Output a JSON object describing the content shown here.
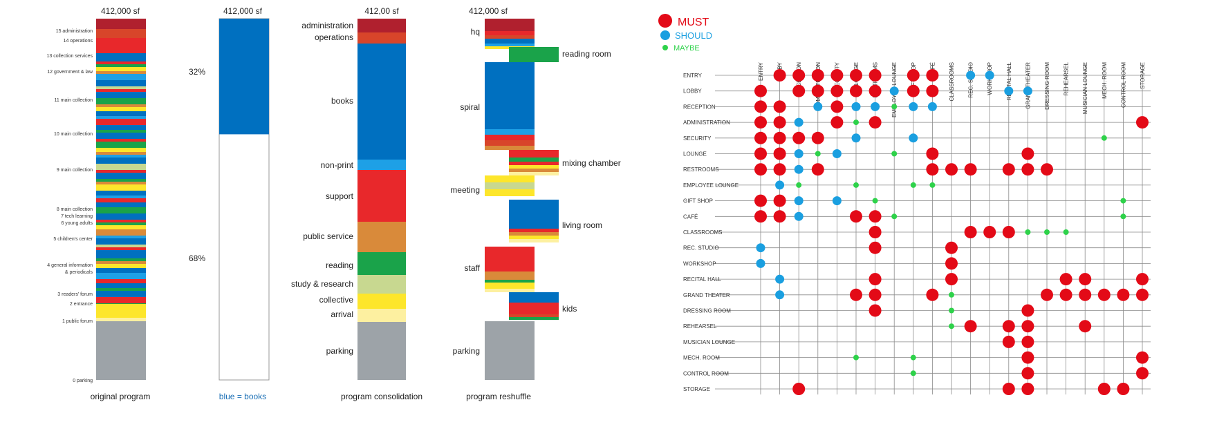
{
  "colors": {
    "darkred": "#b0202e",
    "red": "#e8282b",
    "orangered": "#d8452a",
    "blue": "#0070c0",
    "lightblue": "#1ea0e6",
    "orange": "#d98a3a",
    "green": "#1aa34a",
    "lightgreen": "#c8d890",
    "yellow": "#fde62b",
    "paleyellow": "#fdf0a0",
    "gray": "#9da3a8",
    "must": "#e30a17",
    "should": "#1a9fe0",
    "maybe": "#2ed24a"
  },
  "bars": {
    "original": {
      "total": "412,000 sf",
      "caption": "original program",
      "labels": [
        "15 administration",
        "14 operations",
        "13 collection services",
        "12 government & law",
        "11 main collection",
        "10 main collection",
        "9 main collection",
        "8 main collection",
        "7 tech learning",
        "6 young adults",
        "5 children's center",
        "4 general information",
        "& periodicals",
        "3 readers' forum",
        "2 entrance",
        "1 public forum",
        "0 parking"
      ]
    },
    "books": {
      "total": "412,000 sf",
      "caption": "blue = books",
      "pct_books": "32%",
      "pct_other": "68%",
      "books_fraction": 0.32
    },
    "consolidation": {
      "total": "412,00 sf",
      "caption": "program consolidation",
      "labels": [
        "administration",
        "operations",
        "books",
        "non-print",
        "support",
        "public service",
        "reading",
        "study & research",
        "collective",
        "arrival",
        "parking"
      ]
    },
    "reshuffle": {
      "total": "412,000 sf",
      "caption": "program reshuffle",
      "labels": [
        "hq",
        "reading room",
        "spiral",
        "mixing chamber",
        "meeting",
        "living room",
        "staff",
        "kids",
        "parking"
      ]
    }
  },
  "matrix": {
    "legend": {
      "must": "MUST",
      "should": "SHOULD",
      "maybe": "MAYBE"
    },
    "columns": [
      "ENTRY",
      "LOBBY",
      "RECEPTION",
      "ADMINISTRATION",
      "SECURITY",
      "LOUNGE",
      "RESTROOMS",
      "EMPLOYEE LOUNGE",
      "GIFT SHOP",
      "CAFÉ",
      "CLASSROOMS",
      "REC. STUDIO",
      "WORKSHOP",
      "RECITAL HALL",
      "GRAND THEATER",
      "DRESSING ROOM",
      "REHEARSEL",
      "MUSICIAN LOUNGE",
      "MECH. ROOM",
      "CONTROL ROOM",
      "STORAGE"
    ],
    "rows": [
      "ENTRY",
      "LOBBY",
      "RECEPTION",
      "ADMINISTRATION",
      "SECURITY",
      "LOUNGE",
      "RESTROOMS",
      "EMPLOYEE LOUNGE",
      "GIFT SHOP",
      "CAFÉ",
      "CLASSROOMS",
      "REC. STUDIO",
      "WORKSHOP",
      "RECITAL HALL",
      "GRAND THEATER",
      "DRESSING ROOM",
      "REHEARSEL",
      "MUSICIAN LOUNGE",
      "MECH. ROOM",
      "CONTROL ROOM",
      "STORAGE"
    ],
    "cells": [
      {
        "row": 0,
        "col": 1,
        "level": "must"
      },
      {
        "row": 0,
        "col": 2,
        "level": "must"
      },
      {
        "row": 0,
        "col": 3,
        "level": "must"
      },
      {
        "row": 0,
        "col": 4,
        "level": "must"
      },
      {
        "row": 0,
        "col": 5,
        "level": "must"
      },
      {
        "row": 0,
        "col": 6,
        "level": "must"
      },
      {
        "row": 0,
        "col": 8,
        "level": "must"
      },
      {
        "row": 0,
        "col": 9,
        "level": "must"
      },
      {
        "row": 0,
        "col": 11,
        "level": "should"
      },
      {
        "row": 0,
        "col": 12,
        "level": "should"
      },
      {
        "row": 1,
        "col": 0,
        "level": "must"
      },
      {
        "row": 1,
        "col": 2,
        "level": "must"
      },
      {
        "row": 1,
        "col": 3,
        "level": "must"
      },
      {
        "row": 1,
        "col": 4,
        "level": "must"
      },
      {
        "row": 1,
        "col": 5,
        "level": "must"
      },
      {
        "row": 1,
        "col": 6,
        "level": "must"
      },
      {
        "row": 1,
        "col": 7,
        "level": "should"
      },
      {
        "row": 1,
        "col": 8,
        "level": "must"
      },
      {
        "row": 1,
        "col": 9,
        "level": "must"
      },
      {
        "row": 1,
        "col": 13,
        "level": "should"
      },
      {
        "row": 1,
        "col": 14,
        "level": "should"
      },
      {
        "row": 2,
        "col": 0,
        "level": "must"
      },
      {
        "row": 2,
        "col": 1,
        "level": "must"
      },
      {
        "row": 2,
        "col": 3,
        "level": "should"
      },
      {
        "row": 2,
        "col": 4,
        "level": "must"
      },
      {
        "row": 2,
        "col": 5,
        "level": "should"
      },
      {
        "row": 2,
        "col": 6,
        "level": "should"
      },
      {
        "row": 2,
        "col": 7,
        "level": "maybe"
      },
      {
        "row": 2,
        "col": 8,
        "level": "should"
      },
      {
        "row": 2,
        "col": 9,
        "level": "should"
      },
      {
        "row": 3,
        "col": 0,
        "level": "must"
      },
      {
        "row": 3,
        "col": 1,
        "level": "must"
      },
      {
        "row": 3,
        "col": 2,
        "level": "should"
      },
      {
        "row": 3,
        "col": 4,
        "level": "must"
      },
      {
        "row": 3,
        "col": 5,
        "level": "maybe"
      },
      {
        "row": 3,
        "col": 6,
        "level": "must"
      },
      {
        "row": 3,
        "col": 20,
        "level": "must"
      },
      {
        "row": 4,
        "col": 0,
        "level": "must"
      },
      {
        "row": 4,
        "col": 1,
        "level": "must"
      },
      {
        "row": 4,
        "col": 2,
        "level": "must"
      },
      {
        "row": 4,
        "col": 3,
        "level": "must"
      },
      {
        "row": 4,
        "col": 5,
        "level": "should"
      },
      {
        "row": 4,
        "col": 8,
        "level": "should"
      },
      {
        "row": 4,
        "col": 18,
        "level": "maybe"
      },
      {
        "row": 5,
        "col": 0,
        "level": "must"
      },
      {
        "row": 5,
        "col": 1,
        "level": "must"
      },
      {
        "row": 5,
        "col": 2,
        "level": "should"
      },
      {
        "row": 5,
        "col": 3,
        "level": "maybe"
      },
      {
        "row": 5,
        "col": 4,
        "level": "should"
      },
      {
        "row": 5,
        "col": 7,
        "level": "maybe"
      },
      {
        "row": 5,
        "col": 9,
        "level": "must"
      },
      {
        "row": 5,
        "col": 14,
        "level": "must"
      },
      {
        "row": 6,
        "col": 0,
        "level": "must"
      },
      {
        "row": 6,
        "col": 1,
        "level": "must"
      },
      {
        "row": 6,
        "col": 2,
        "level": "should"
      },
      {
        "row": 6,
        "col": 3,
        "level": "must"
      },
      {
        "row": 6,
        "col": 9,
        "level": "must"
      },
      {
        "row": 6,
        "col": 10,
        "level": "must"
      },
      {
        "row": 6,
        "col": 11,
        "level": "must"
      },
      {
        "row": 6,
        "col": 13,
        "level": "must"
      },
      {
        "row": 6,
        "col": 14,
        "level": "must"
      },
      {
        "row": 6,
        "col": 15,
        "level": "must"
      },
      {
        "row": 7,
        "col": 1,
        "level": "should"
      },
      {
        "row": 7,
        "col": 2,
        "level": "maybe"
      },
      {
        "row": 7,
        "col": 5,
        "level": "maybe"
      },
      {
        "row": 7,
        "col": 8,
        "level": "maybe"
      },
      {
        "row": 7,
        "col": 9,
        "level": "maybe"
      },
      {
        "row": 8,
        "col": 0,
        "level": "must"
      },
      {
        "row": 8,
        "col": 1,
        "level": "must"
      },
      {
        "row": 8,
        "col": 2,
        "level": "should"
      },
      {
        "row": 8,
        "col": 4,
        "level": "should"
      },
      {
        "row": 8,
        "col": 6,
        "level": "maybe"
      },
      {
        "row": 8,
        "col": 19,
        "level": "maybe"
      },
      {
        "row": 9,
        "col": 0,
        "level": "must"
      },
      {
        "row": 9,
        "col": 1,
        "level": "must"
      },
      {
        "row": 9,
        "col": 2,
        "level": "should"
      },
      {
        "row": 9,
        "col": 5,
        "level": "must"
      },
      {
        "row": 9,
        "col": 6,
        "level": "must"
      },
      {
        "row": 9,
        "col": 7,
        "level": "maybe"
      },
      {
        "row": 9,
        "col": 19,
        "level": "maybe"
      },
      {
        "row": 10,
        "col": 6,
        "level": "must"
      },
      {
        "row": 10,
        "col": 11,
        "level": "must"
      },
      {
        "row": 10,
        "col": 12,
        "level": "must"
      },
      {
        "row": 10,
        "col": 13,
        "level": "must"
      },
      {
        "row": 10,
        "col": 14,
        "level": "maybe"
      },
      {
        "row": 10,
        "col": 15,
        "level": "maybe"
      },
      {
        "row": 10,
        "col": 16,
        "level": "maybe"
      },
      {
        "row": 11,
        "col": 0,
        "level": "should"
      },
      {
        "row": 11,
        "col": 6,
        "level": "must"
      },
      {
        "row": 11,
        "col": 10,
        "level": "must"
      },
      {
        "row": 12,
        "col": 0,
        "level": "should"
      },
      {
        "row": 12,
        "col": 10,
        "level": "must"
      },
      {
        "row": 13,
        "col": 1,
        "level": "should"
      },
      {
        "row": 13,
        "col": 6,
        "level": "must"
      },
      {
        "row": 13,
        "col": 10,
        "level": "must"
      },
      {
        "row": 13,
        "col": 16,
        "level": "must"
      },
      {
        "row": 13,
        "col": 17,
        "level": "must"
      },
      {
        "row": 13,
        "col": 20,
        "level": "must"
      },
      {
        "row": 14,
        "col": 1,
        "level": "should"
      },
      {
        "row": 14,
        "col": 5,
        "level": "must"
      },
      {
        "row": 14,
        "col": 6,
        "level": "must"
      },
      {
        "row": 14,
        "col": 9,
        "level": "must"
      },
      {
        "row": 14,
        "col": 10,
        "level": "maybe"
      },
      {
        "row": 14,
        "col": 15,
        "level": "must"
      },
      {
        "row": 14,
        "col": 16,
        "level": "must"
      },
      {
        "row": 14,
        "col": 17,
        "level": "must"
      },
      {
        "row": 14,
        "col": 18,
        "level": "must"
      },
      {
        "row": 14,
        "col": 19,
        "level": "must"
      },
      {
        "row": 14,
        "col": 20,
        "level": "must"
      },
      {
        "row": 15,
        "col": 6,
        "level": "must"
      },
      {
        "row": 15,
        "col": 10,
        "level": "maybe"
      },
      {
        "row": 15,
        "col": 14,
        "level": "must"
      },
      {
        "row": 16,
        "col": 10,
        "level": "maybe"
      },
      {
        "row": 16,
        "col": 11,
        "level": "must"
      },
      {
        "row": 16,
        "col": 13,
        "level": "must"
      },
      {
        "row": 16,
        "col": 14,
        "level": "must"
      },
      {
        "row": 16,
        "col": 17,
        "level": "must"
      },
      {
        "row": 17,
        "col": 13,
        "level": "must"
      },
      {
        "row": 17,
        "col": 14,
        "level": "must"
      },
      {
        "row": 18,
        "col": 5,
        "level": "maybe"
      },
      {
        "row": 18,
        "col": 8,
        "level": "maybe"
      },
      {
        "row": 18,
        "col": 14,
        "level": "must"
      },
      {
        "row": 18,
        "col": 20,
        "level": "must"
      },
      {
        "row": 19,
        "col": 8,
        "level": "maybe"
      },
      {
        "row": 19,
        "col": 14,
        "level": "must"
      },
      {
        "row": 19,
        "col": 20,
        "level": "must"
      },
      {
        "row": 20,
        "col": 2,
        "level": "must"
      },
      {
        "row": 20,
        "col": 13,
        "level": "must"
      },
      {
        "row": 20,
        "col": 14,
        "level": "must"
      },
      {
        "row": 20,
        "col": 18,
        "level": "must"
      },
      {
        "row": 20,
        "col": 19,
        "level": "must"
      }
    ]
  }
}
